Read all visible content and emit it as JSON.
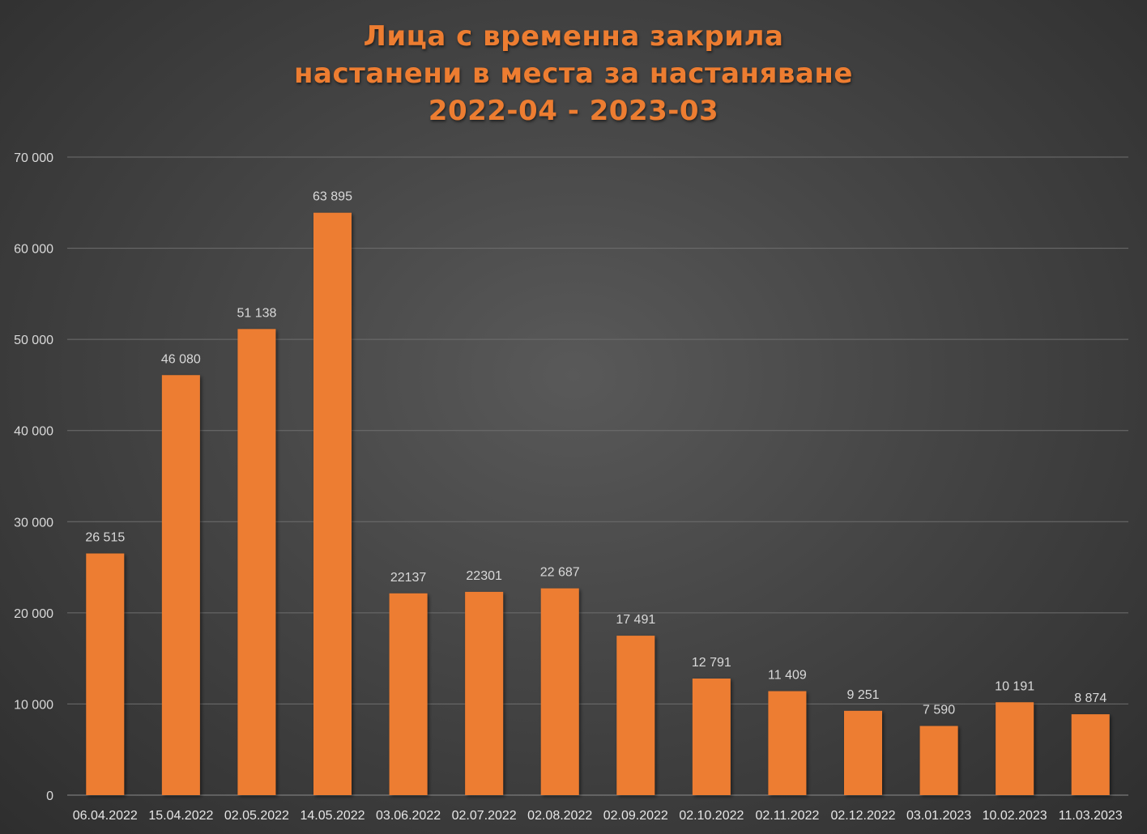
{
  "chart_data": {
    "type": "bar",
    "title_lines": [
      "Лица с временна закрила",
      "настанени в места за настаняване",
      "2022-04  - 2023-03"
    ],
    "categories": [
      "06.04.2022",
      "15.04.2022",
      "02.05.2022",
      "14.05.2022",
      "03.06.2022",
      "02.07.2022",
      "02.08.2022",
      "02.09.2022",
      "02.10.2022",
      "02.11.2022",
      "02.12.2022",
      "03.01.2023",
      "10.02.2023",
      "11.03.2023"
    ],
    "values": [
      26515,
      46080,
      51138,
      63895,
      22137,
      22301,
      22687,
      17491,
      12791,
      11409,
      9251,
      7590,
      10191,
      8874
    ],
    "data_labels": [
      "26 515",
      "46 080",
      "51 138",
      "63 895",
      "22137",
      "22301",
      "22 687",
      "17 491",
      "12 791",
      "11 409",
      "9 251",
      "7 590",
      "10 191",
      "8 874"
    ],
    "y_ticks": [
      0,
      10000,
      20000,
      30000,
      40000,
      50000,
      60000,
      70000
    ],
    "y_tick_labels": [
      "0",
      "10 000",
      "20 000",
      "30 000",
      "40 000",
      "50 000",
      "60 000",
      "70 000"
    ],
    "ylim": [
      0,
      70000
    ],
    "grid": true,
    "legend": "none",
    "colors": {
      "bar": "#ed7d31",
      "title": "#ed7d31",
      "grid": "#6e6e6e",
      "text": "#d9d9d9"
    }
  }
}
